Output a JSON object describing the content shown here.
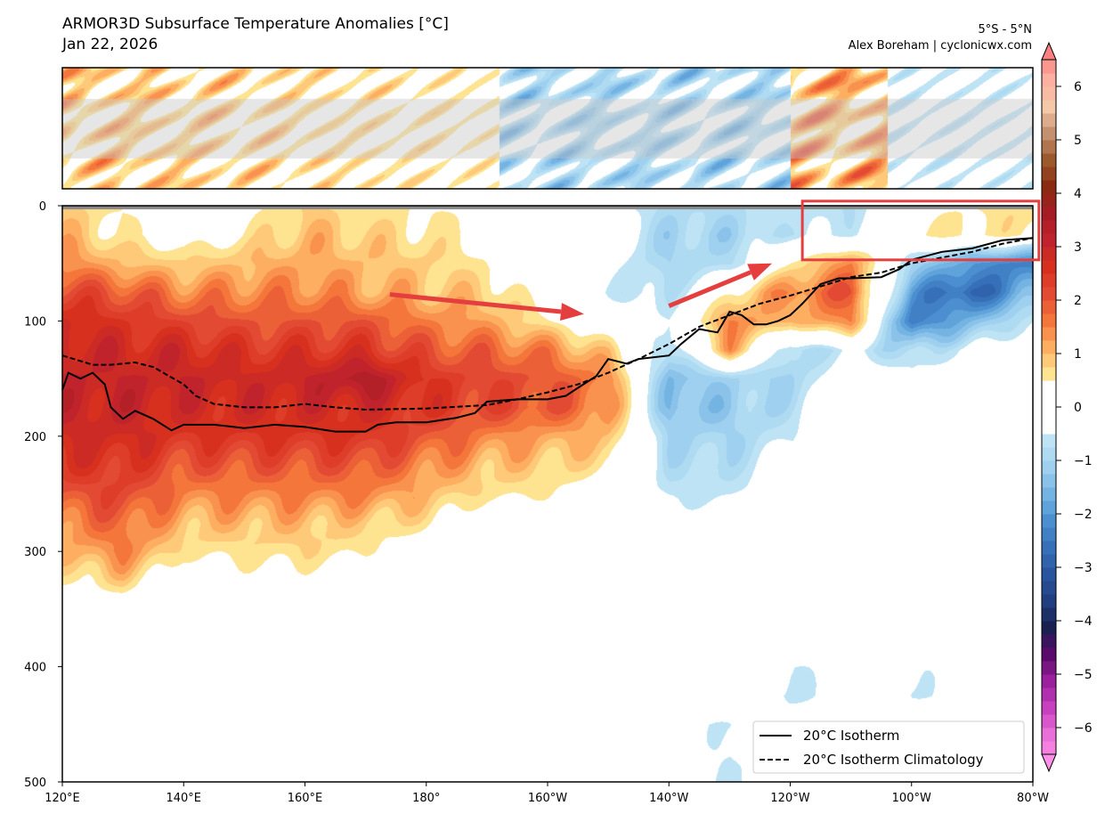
{
  "chart_data": {
    "type": "heatmap",
    "title": "ARMOR3D Subsurface Temperature Anomalies [°C]",
    "subtitle": "Jan 22, 2026",
    "region_label": "5°S - 5°N",
    "credit": "Alex Boreham | cyclonicwx.com",
    "xlim": [
      120,
      280
    ],
    "ylim": [
      500,
      0
    ],
    "xtick_values": [
      120,
      140,
      160,
      180,
      200,
      220,
      240,
      260,
      280
    ],
    "xtick_labels": [
      "120°E",
      "140°E",
      "160°E",
      "180°",
      "160°W",
      "140°W",
      "120°W",
      "100°W",
      "80°W"
    ],
    "ytick_values": [
      0,
      100,
      200,
      300,
      400,
      500
    ],
    "ytick_labels": [
      "0",
      "100",
      "200",
      "300",
      "400",
      "500"
    ],
    "grid": false,
    "x": [
      120,
      130,
      140,
      150,
      160,
      170,
      180,
      190,
      200,
      210,
      220,
      230,
      240,
      250,
      260,
      270,
      280
    ],
    "y": [
      0,
      25,
      50,
      75,
      100,
      125,
      150,
      175,
      200,
      225,
      250,
      275,
      300,
      325,
      350,
      375,
      400,
      425,
      450,
      475,
      500
    ],
    "z": [
      [
        0.8,
        0.5,
        0,
        0.3,
        0.8,
        0.5,
        0.5,
        0.3,
        0,
        -0.3,
        -0.8,
        -0.8,
        -0.5,
        -0.8,
        0.3,
        0.5,
        0.8
      ],
      [
        1.0,
        0.5,
        0.2,
        0.5,
        1.0,
        0.8,
        0.6,
        0.4,
        0,
        -0.3,
        -1.0,
        -1.0,
        -0.6,
        -0.5,
        0.5,
        0.6,
        0.5
      ],
      [
        1.5,
        1.0,
        0.8,
        1.0,
        1.2,
        1.0,
        0.8,
        0.5,
        0,
        -0.3,
        -1.0,
        -0.8,
        0.5,
        1.5,
        -1.0,
        -2.0,
        -2.5
      ],
      [
        2.2,
        2.0,
        1.5,
        1.5,
        1.5,
        1.2,
        1.0,
        0.8,
        0.2,
        -0.5,
        -0.8,
        0.5,
        1.5,
        2.0,
        -2.0,
        -3.0,
        -1.5
      ],
      [
        2.8,
        2.5,
        2.2,
        2.0,
        2.0,
        2.0,
        1.5,
        1.2,
        0.5,
        0,
        -0.5,
        1.5,
        1.0,
        1.5,
        -2.5,
        -1.5,
        -0.5
      ],
      [
        3.0,
        2.8,
        2.8,
        2.5,
        2.5,
        2.5,
        2.0,
        1.8,
        1.5,
        0.8,
        -1.0,
        1.2,
        -1.0,
        -0.5,
        -1.0,
        -0.3,
        0
      ],
      [
        3.0,
        3.0,
        3.0,
        2.8,
        3.0,
        3.5,
        2.5,
        2.2,
        2.0,
        1.5,
        -1.5,
        -1.0,
        -1.0,
        0,
        -0.3,
        0,
        0
      ],
      [
        3.0,
        3.0,
        2.8,
        2.8,
        2.8,
        2.8,
        2.5,
        2.2,
        2.0,
        1.5,
        -1.5,
        -1.2,
        -0.8,
        0,
        0,
        0,
        0
      ],
      [
        2.8,
        2.8,
        2.5,
        2.5,
        2.5,
        2.5,
        2.0,
        1.5,
        1.2,
        1.0,
        -1.0,
        -1.0,
        -0.5,
        0,
        0,
        0,
        0
      ],
      [
        2.5,
        2.5,
        2.0,
        2.0,
        2.0,
        2.0,
        1.5,
        1.0,
        0.8,
        0.6,
        -0.8,
        -0.8,
        -0.3,
        0,
        0,
        0,
        0
      ],
      [
        2.0,
        2.2,
        1.5,
        1.5,
        1.5,
        1.5,
        1.0,
        0.6,
        0.5,
        0,
        -0.6,
        -0.6,
        0,
        0,
        0,
        0,
        0
      ],
      [
        1.5,
        1.8,
        1.0,
        1.0,
        1.0,
        0.8,
        0.6,
        0,
        0,
        0,
        -0.3,
        0,
        0,
        0,
        0,
        0,
        0
      ],
      [
        1.0,
        1.5,
        0.6,
        0.6,
        0.7,
        0.5,
        0,
        0,
        0,
        0,
        0,
        0,
        0,
        0,
        0,
        0,
        0
      ],
      [
        0.5,
        0.8,
        0,
        0.3,
        0.3,
        0,
        0,
        0,
        0,
        0,
        0,
        0,
        0,
        0,
        0,
        0,
        0
      ],
      [
        0,
        0,
        0,
        0,
        0,
        0,
        0,
        0,
        0,
        0,
        0,
        0,
        0,
        0,
        0,
        0,
        0
      ],
      [
        0,
        0,
        0,
        0,
        0,
        0,
        0,
        0,
        0,
        0,
        0,
        0,
        0,
        0,
        0,
        0,
        0
      ],
      [
        0,
        0,
        0,
        0,
        0,
        0,
        0,
        0,
        0,
        0,
        0,
        0,
        -0.6,
        0,
        -0.6,
        0,
        0
      ],
      [
        0,
        0,
        0,
        0,
        0,
        0,
        0,
        0,
        0,
        0,
        0,
        0,
        -0.7,
        0,
        -0.6,
        0,
        0
      ],
      [
        0,
        0,
        0,
        0,
        0,
        0,
        0,
        0,
        0,
        0,
        0,
        -0.6,
        0,
        0,
        0,
        0,
        0
      ],
      [
        0,
        0,
        0,
        0,
        0,
        0,
        0,
        0,
        0,
        0,
        0,
        -0.6,
        0,
        0,
        0,
        0,
        0
      ],
      [
        0,
        0,
        0,
        0,
        0,
        0,
        0,
        0,
        0,
        0,
        0,
        -0.6,
        0,
        0,
        0,
        0,
        0
      ]
    ],
    "lines": [
      {
        "name": "20°C Isotherm",
        "style": "solid",
        "color": "#000000",
        "x": [
          120,
          121,
          123,
          125,
          127,
          128,
          130,
          132,
          135,
          138,
          140,
          145,
          150,
          155,
          160,
          165,
          170,
          172,
          175,
          180,
          185,
          188,
          190,
          195,
          200,
          203,
          205,
          208,
          210,
          213,
          215,
          220,
          222,
          225,
          228,
          230,
          232,
          234,
          236,
          238,
          240,
          242,
          245,
          248,
          250,
          255,
          258,
          260,
          265,
          270,
          275,
          280
        ],
        "y": [
          160,
          145,
          150,
          145,
          155,
          175,
          185,
          178,
          185,
          195,
          190,
          190,
          193,
          190,
          192,
          196,
          196,
          190,
          188,
          188,
          184,
          180,
          170,
          168,
          168,
          165,
          158,
          148,
          133,
          137,
          133,
          130,
          120,
          107,
          110,
          92,
          95,
          103,
          103,
          100,
          95,
          85,
          68,
          63,
          63,
          62,
          55,
          47,
          40,
          37,
          30,
          28
        ]
      },
      {
        "name": "20°C Isotherm Climatology",
        "style": "dashed",
        "color": "#000000",
        "x": [
          120,
          125,
          128,
          132,
          135,
          140,
          142,
          145,
          150,
          155,
          160,
          165,
          170,
          180,
          190,
          195,
          200,
          205,
          210,
          215,
          220,
          225,
          230,
          235,
          240,
          245,
          250,
          255,
          260,
          265,
          270,
          275,
          280
        ],
        "y": [
          130,
          138,
          138,
          136,
          140,
          155,
          165,
          172,
          175,
          175,
          172,
          175,
          177,
          176,
          173,
          168,
          162,
          155,
          145,
          133,
          120,
          105,
          95,
          85,
          78,
          70,
          62,
          58,
          50,
          45,
          40,
          33,
          28
        ]
      }
    ],
    "legend": {
      "placement": "lower-right",
      "entries": [
        "20°C Isotherm",
        "20°C Isotherm Climatology"
      ]
    },
    "colorbar": {
      "range": [
        -6.5,
        6.5
      ],
      "tick_values": [
        6,
        5,
        4,
        3,
        2,
        1,
        0,
        -1,
        -2,
        -3,
        -4,
        -5,
        -6
      ],
      "tick_labels": [
        "6",
        "5",
        "4",
        "3",
        "2",
        "1",
        "0",
        "−1",
        "−2",
        "−3",
        "−4",
        "−5",
        "−6"
      ],
      "white_band": [
        -0.5,
        0.5
      ],
      "step": 0.25,
      "stops": [
        [
          0.5,
          "#fee391"
        ],
        [
          1,
          "#fdae61"
        ],
        [
          1.5,
          "#f4763a"
        ],
        [
          2,
          "#e34a33"
        ],
        [
          2.5,
          "#d7301f"
        ],
        [
          3,
          "#c0232b"
        ],
        [
          3.5,
          "#a51c24"
        ],
        [
          4,
          "#8b2a12"
        ],
        [
          4.5,
          "#9b5a2b"
        ],
        [
          5,
          "#c49070"
        ],
        [
          5.5,
          "#f5c8a8"
        ],
        [
          6,
          "#fbb0a0"
        ],
        [
          6.5,
          "#f88080"
        ],
        [
          -0.5,
          "#bde3f5"
        ],
        [
          -1,
          "#9fd0ef"
        ],
        [
          -1.5,
          "#74b4e3"
        ],
        [
          -2,
          "#4b8fd0"
        ],
        [
          -2.5,
          "#3670b8"
        ],
        [
          -3,
          "#2a559e"
        ],
        [
          -3.5,
          "#1f3f80"
        ],
        [
          -4,
          "#1a2050"
        ],
        [
          -4.5,
          "#5a0a6a"
        ],
        [
          -5,
          "#9a209e"
        ],
        [
          -5.5,
          "#c840c0"
        ],
        [
          -6,
          "#e870d8"
        ],
        [
          -6.5,
          "#ff90e8"
        ]
      ]
    },
    "annotations": {
      "color": "#e53e3e",
      "box_lon": [
        242,
        281
      ],
      "box_depth": [
        -4,
        47
      ],
      "arrows": [
        {
          "from": [
            174,
            77
          ],
          "to": [
            206,
            94
          ]
        },
        {
          "from": [
            220,
            87
          ],
          "to": [
            237,
            50
          ]
        }
      ]
    },
    "inset_map": {
      "band_color": "#c8c8c8"
    }
  }
}
